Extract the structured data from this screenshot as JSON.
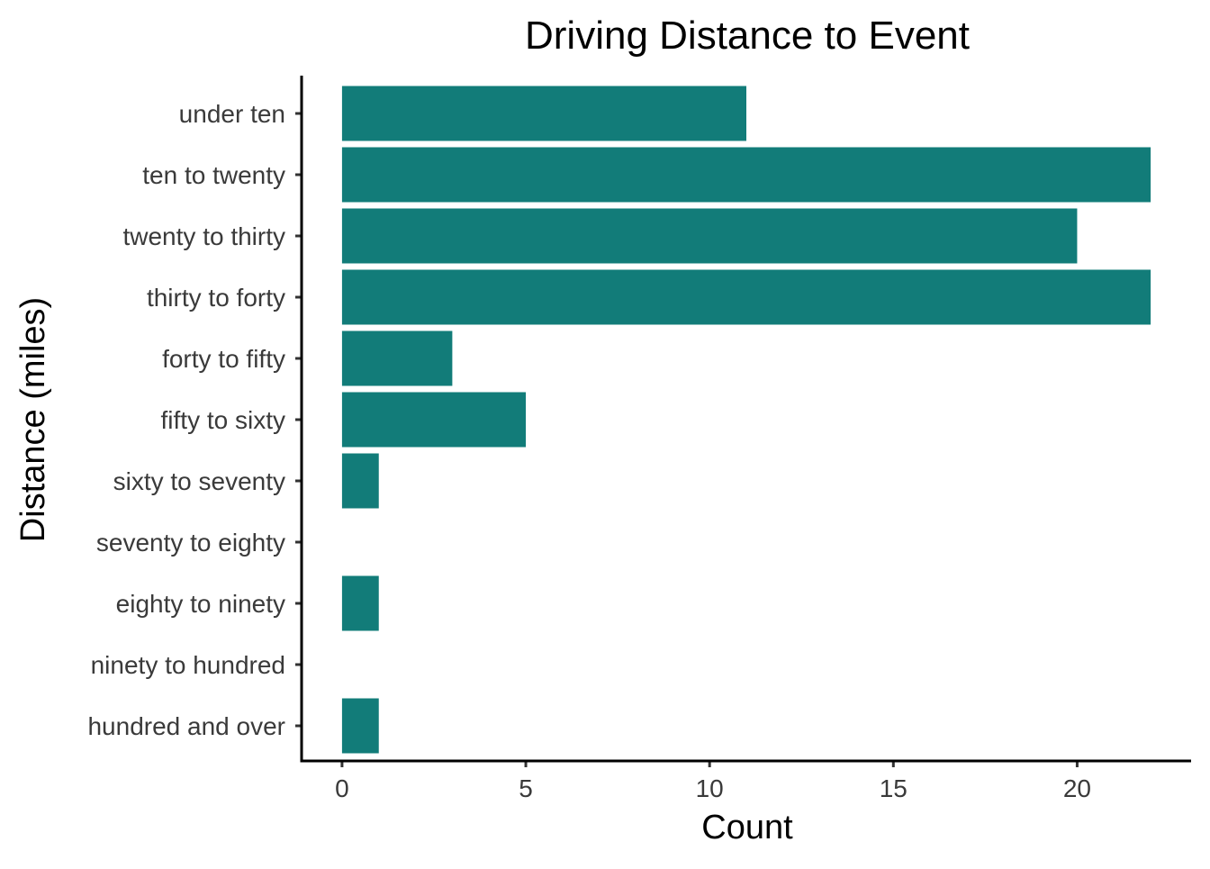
{
  "chart_data": {
    "type": "bar",
    "orientation": "horizontal",
    "title": "Driving Distance to Event",
    "xlabel": "Count",
    "ylabel": "Distance (miles)",
    "categories": [
      "under ten",
      "ten to twenty",
      "twenty to thirty",
      "thirty to forty",
      "forty to fifty",
      "fifty to sixty",
      "sixty to seventy",
      "seventy to eighty",
      "eighty to ninety",
      "ninety to hundred",
      "hundred and over"
    ],
    "values": [
      11,
      22,
      20,
      22,
      3,
      5,
      1,
      0,
      1,
      0,
      1
    ],
    "xticks": [
      "0",
      "5",
      "10",
      "15",
      "20"
    ],
    "xlim": [
      -1.1,
      23.1
    ],
    "bar_color": "#127c79",
    "grid": false,
    "legend": "none"
  }
}
